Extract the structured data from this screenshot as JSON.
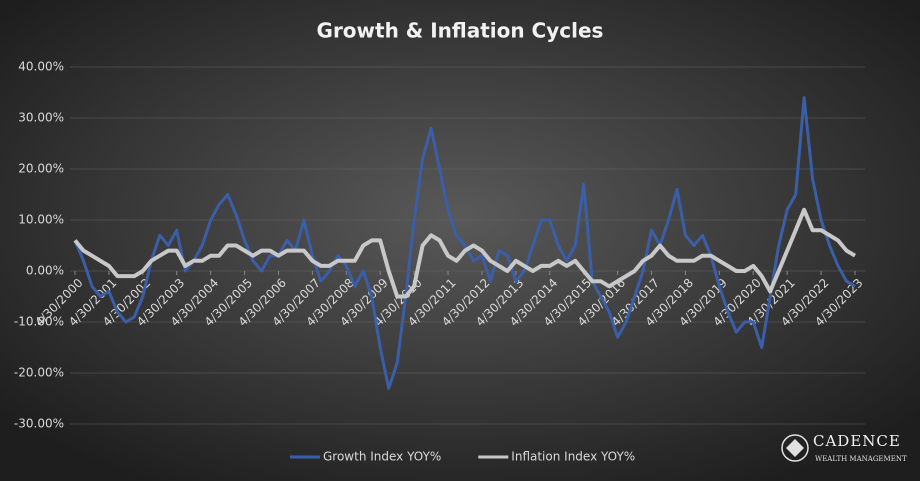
{
  "chart_data": {
    "type": "line",
    "title": "Growth & Inflation Cycles",
    "categories": [
      "4/30/2000",
      null,
      null,
      null,
      "4/30/2001",
      null,
      null,
      null,
      "4/30/2002",
      null,
      null,
      null,
      "4/30/2003",
      null,
      null,
      null,
      "4/30/2004",
      null,
      null,
      null,
      "4/30/2005",
      null,
      null,
      null,
      "4/30/2006",
      null,
      null,
      null,
      "4/30/2007",
      null,
      null,
      null,
      "4/30/2008",
      null,
      null,
      null,
      "4/30/2009",
      null,
      null,
      null,
      "4/30/2010",
      null,
      null,
      null,
      "4/30/2011",
      null,
      null,
      null,
      "4/30/2012",
      null,
      null,
      null,
      "4/30/2013",
      null,
      null,
      null,
      "4/30/2014",
      null,
      null,
      null,
      "4/30/2015",
      null,
      null,
      null,
      "4/30/2016",
      null,
      null,
      null,
      "4/30/2017",
      null,
      null,
      null,
      "4/30/2018",
      null,
      null,
      null,
      "4/30/2019",
      null,
      null,
      null,
      "4/30/2020",
      null,
      null,
      null,
      "4/30/2021",
      null,
      null,
      null,
      "4/30/2022",
      null,
      null,
      null,
      "4/30/2023"
    ],
    "series": [
      {
        "name": "Growth Index YOY%",
        "color": "#3b5ea8",
        "values": [
          6,
          2,
          -3,
          -5,
          -4,
          -8,
          -10,
          -9,
          -5,
          2,
          7,
          5,
          8,
          0,
          2,
          5,
          10,
          13,
          15,
          11,
          6,
          2,
          0,
          3,
          3,
          6,
          4,
          10,
          3,
          -2,
          0,
          3,
          1,
          -3,
          0,
          -5,
          -15,
          -23,
          -18,
          -5,
          10,
          22,
          28,
          20,
          12,
          7,
          5,
          2,
          3,
          -2,
          4,
          3,
          -2,
          0,
          5,
          10,
          10,
          5,
          2,
          5,
          17,
          -2,
          -5,
          -8,
          -13,
          -10,
          -5,
          0,
          8,
          5,
          10,
          16,
          7,
          5,
          7,
          3,
          -3,
          -8,
          -12,
          -10,
          -10,
          -15,
          -5,
          5,
          12,
          15,
          34,
          18,
          10,
          5,
          1,
          -2,
          -3
        ]
      },
      {
        "name": "Inflation Index YOY%",
        "color": "#c8c8c8",
        "values": [
          6,
          4,
          3,
          2,
          1,
          -1,
          -1,
          -1,
          0,
          2,
          3,
          4,
          4,
          1,
          2,
          2,
          3,
          3,
          5,
          5,
          4,
          3,
          4,
          4,
          3,
          4,
          4,
          4,
          2,
          1,
          1,
          2,
          2,
          2,
          5,
          6,
          6,
          0,
          -5,
          -5,
          -3,
          5,
          7,
          6,
          3,
          2,
          4,
          5,
          4,
          2,
          1,
          0,
          2,
          1,
          0,
          1,
          1,
          2,
          1,
          2,
          0,
          -2,
          -2,
          -3,
          -2,
          -1,
          0,
          2,
          3,
          5,
          3,
          2,
          2,
          2,
          3,
          3,
          2,
          1,
          0,
          0,
          1,
          -1,
          -4,
          0,
          4,
          8,
          12,
          8,
          8,
          7,
          6,
          4,
          3
        ]
      }
    ],
    "ylim": [
      -30,
      40
    ],
    "yticks": [
      {
        "value": -30,
        "label": "-30.00%"
      },
      {
        "value": -20,
        "label": "-20.00%"
      },
      {
        "value": -10,
        "label": "-10.00%"
      },
      {
        "value": 0,
        "label": "0.00%"
      },
      {
        "value": 10,
        "label": "10.00%"
      },
      {
        "value": 20,
        "label": "20.00%"
      },
      {
        "value": 30,
        "label": "30.00%"
      },
      {
        "value": 40,
        "label": "40.00%"
      }
    ],
    "grid": true,
    "legend": "bottom"
  },
  "logo": {
    "name": "CADENCE",
    "tagline": "WEALTH MANAGEMENT"
  }
}
